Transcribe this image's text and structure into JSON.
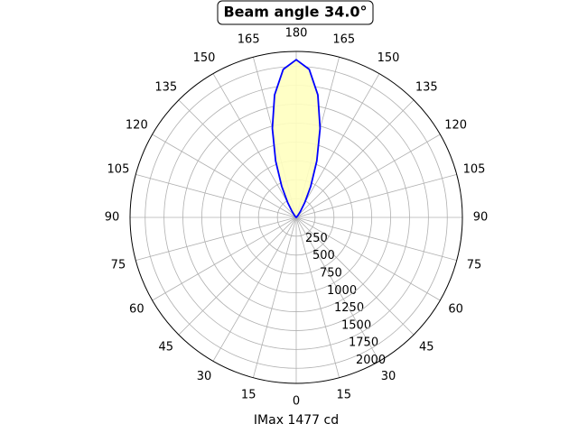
{
  "chart_data": {
    "type": "polar",
    "title": "Beam angle 34.0°",
    "xlabel": "IMax 1477 cd",
    "x": [
      90,
      130,
      135,
      140,
      145,
      150,
      155,
      160,
      165,
      170,
      175,
      180,
      185,
      190,
      195,
      200,
      205,
      210,
      215,
      220,
      225,
      230,
      270
    ],
    "series": [
      {
        "color": "#0000ff",
        "fill": "#ffffc0",
        "values": [
          0,
          2,
          10,
          34,
          95,
          225,
          455,
          797,
          1221,
          1649,
          1970,
          2090,
          1970,
          1649,
          1221,
          797,
          455,
          225,
          95,
          34,
          10,
          2,
          0
        ]
      }
    ],
    "rlim": [
      0,
      2200
    ],
    "rticks": [
      250,
      500,
      750,
      1000,
      1250,
      1500,
      1750,
      2000
    ],
    "thetaticks": [
      0,
      15,
      30,
      45,
      60,
      75,
      90,
      105,
      120,
      135,
      150,
      165,
      180,
      {
        "value": 195,
        "label": "165"
      },
      {
        "value": 210,
        "label": "150"
      },
      {
        "value": 225,
        "label": "135"
      },
      {
        "value": 240,
        "label": "120"
      },
      {
        "value": 255,
        "label": "105"
      },
      {
        "value": 270,
        "label": "90"
      },
      {
        "value": 285,
        "label": "75"
      },
      {
        "value": 300,
        "label": "60"
      },
      {
        "value": 315,
        "label": "45"
      },
      {
        "value": 330,
        "label": "30"
      },
      {
        "value": 345,
        "label": "15"
      }
    ],
    "grid": true
  }
}
